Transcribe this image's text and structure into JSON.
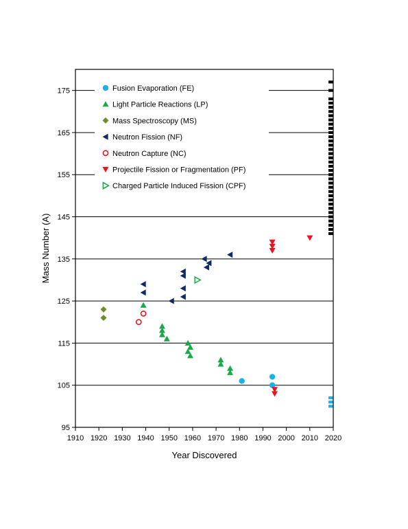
{
  "chart_data": {
    "type": "scatter",
    "title": "",
    "xlabel": "Year Discovered",
    "ylabel": "Mass Number (A)",
    "xlim": [
      1910,
      2020
    ],
    "ylim": [
      95,
      180
    ],
    "xticks": [
      1910,
      1920,
      1930,
      1940,
      1950,
      1960,
      1970,
      1980,
      1990,
      2000,
      2010,
      2020
    ],
    "yticks": [
      95,
      105,
      115,
      125,
      135,
      145,
      155,
      165,
      175
    ],
    "grid": "horizontal",
    "legend_position": "top-left",
    "series": [
      {
        "name": "Fusion Evaporation (FE)",
        "marker": "circle",
        "color": "#1ab0e8",
        "points": [
          [
            1981,
            106
          ],
          [
            1994,
            107
          ],
          [
            1994,
            105
          ]
        ]
      },
      {
        "name": "Light Particle Reactions (LP)",
        "marker": "triangle-up",
        "color": "#1aa84a",
        "points": [
          [
            1939,
            124
          ],
          [
            1947,
            119
          ],
          [
            1947,
            118
          ],
          [
            1947,
            117
          ],
          [
            1949,
            116
          ],
          [
            1958,
            115
          ],
          [
            1959,
            114
          ],
          [
            1958,
            113
          ],
          [
            1959,
            112
          ],
          [
            1972,
            111
          ],
          [
            1972,
            110
          ],
          [
            1976,
            109
          ],
          [
            1976,
            108
          ]
        ]
      },
      {
        "name": "Mass Spectroscopy (MS)",
        "marker": "diamond",
        "color": "#6b8e2f",
        "points": [
          [
            1922,
            123
          ],
          [
            1922,
            121
          ]
        ]
      },
      {
        "name": "Neutron Fission (NF)",
        "marker": "triangle-left",
        "color": "#0f2a66",
        "points": [
          [
            1939,
            129
          ],
          [
            1939,
            127
          ],
          [
            1951,
            125
          ],
          [
            1956,
            132
          ],
          [
            1956,
            131
          ],
          [
            1956,
            128
          ],
          [
            1956,
            126
          ],
          [
            1965,
            135
          ],
          [
            1967,
            134
          ],
          [
            1966,
            133
          ],
          [
            1976,
            136
          ]
        ]
      },
      {
        "name": "Neutron Capture (NC)",
        "marker": "circle-open",
        "color": "#e8141e",
        "points": [
          [
            1937,
            120
          ],
          [
            1939,
            122
          ]
        ]
      },
      {
        "name": "Projectile Fission or Fragmentation (PF)",
        "marker": "triangle-down",
        "color": "#e8141e",
        "points": [
          [
            1994,
            139
          ],
          [
            1994,
            138
          ],
          [
            1994,
            137
          ],
          [
            1995,
            104
          ],
          [
            1995,
            103
          ],
          [
            2010,
            140
          ]
        ]
      },
      {
        "name": "Charged Particle Induced Fission (CPF)",
        "marker": "triangle-right-open",
        "color": "#1aa84a",
        "points": [
          [
            1962,
            130
          ]
        ]
      }
    ],
    "undiscovered_bars": [
      {
        "color": "#000000",
        "masses": [
          141,
          142,
          143,
          144,
          145,
          146,
          147,
          148,
          149,
          150,
          151,
          152,
          153,
          154,
          155,
          156,
          157,
          158,
          159,
          160,
          161,
          162,
          163,
          164,
          165,
          166,
          167,
          168,
          169,
          170,
          171,
          172,
          173,
          175,
          177
        ]
      },
      {
        "color": "#1ab0e8",
        "masses": [
          100,
          101,
          102
        ]
      }
    ]
  }
}
